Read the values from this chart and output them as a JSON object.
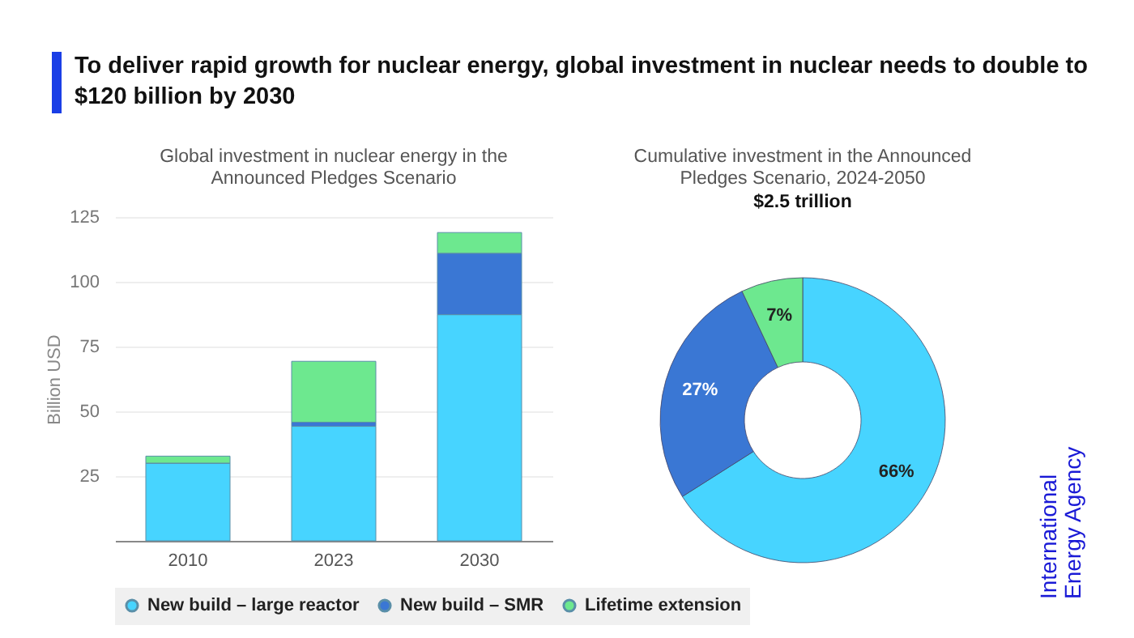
{
  "chart_data": [
    {
      "type": "bar",
      "title": "To deliver rapid growth for nuclear energy, global investment in nuclear needs to double to $120 billion by 2030",
      "subtitle": "Global investment in nuclear energy in the Announced Pledges Scenario",
      "ylabel": "Billion USD",
      "categories": [
        "2010",
        "2023",
        "2030"
      ],
      "stacked": true,
      "series": [
        {
          "name": "New build – large reactor",
          "color": "#47d4ff",
          "values": [
            30,
            44.2,
            87.3
          ]
        },
        {
          "name": "New build – SMR",
          "color": "#3a77d4",
          "values": [
            0,
            1.6,
            23.7
          ]
        },
        {
          "name": "Lifetime extension",
          "color": "#6de88f",
          "values": [
            2.7,
            23.5,
            8
          ]
        }
      ],
      "ylim": [
        0,
        125
      ],
      "yticks": [
        25,
        50,
        75,
        100,
        125
      ],
      "grid": "y",
      "legend": "bottom"
    },
    {
      "type": "donut",
      "title": "Cumulative investment in the Announced Pledges Scenario, 2024-2050",
      "subtitle": "$2.5 trillion",
      "categories": [
        null,
        null,
        null
      ],
      "values": [
        66,
        27,
        7
      ],
      "colors": [
        "#47d4ff",
        "#3a77d4",
        "#6de88f"
      ],
      "value_labels": [
        "66%",
        "27%",
        "7%"
      ],
      "legend": false,
      "annotations": [
        "International Energy Agency"
      ]
    }
  ]
}
